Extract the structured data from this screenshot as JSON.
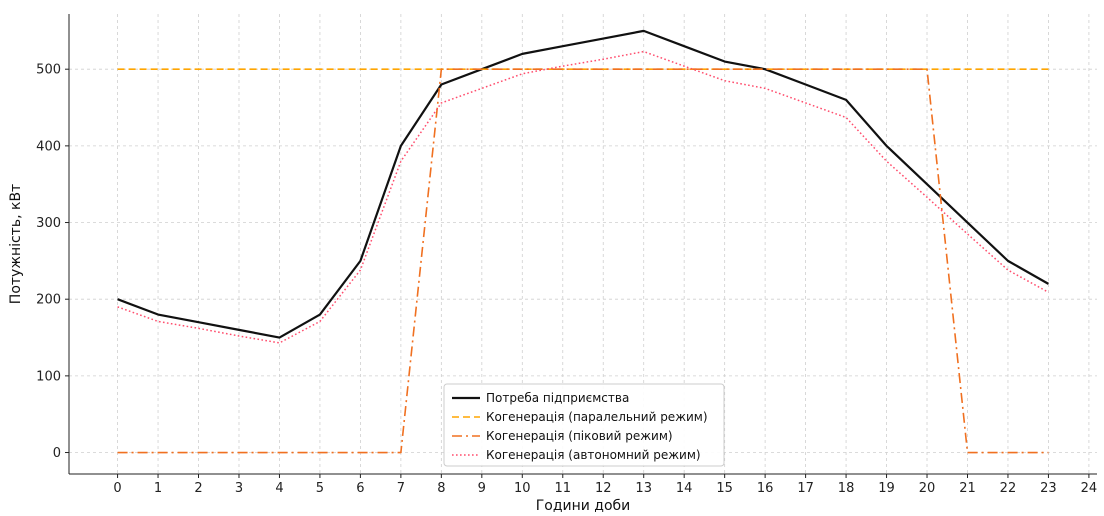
{
  "chart_data": {
    "type": "line",
    "title": "",
    "xlabel": "Години доби",
    "ylabel": "Потужність, кВт",
    "xlim": [
      -1.2,
      24.2
    ],
    "ylim": [
      -28,
      572
    ],
    "xticks": [
      0,
      1,
      2,
      3,
      4,
      5,
      6,
      7,
      8,
      9,
      10,
      11,
      12,
      13,
      14,
      15,
      16,
      17,
      18,
      19,
      20,
      21,
      22,
      23,
      24
    ],
    "yticks": [
      0,
      100,
      200,
      300,
      400,
      500
    ],
    "grid": true,
    "legend_position": "lower-center",
    "x": [
      0,
      1,
      2,
      3,
      4,
      5,
      6,
      7,
      8,
      9,
      10,
      11,
      12,
      13,
      14,
      15,
      16,
      17,
      18,
      19,
      20,
      21,
      22,
      23
    ],
    "series": [
      {
        "name": "Потреба підприємства",
        "color": "#111111",
        "style": "solid",
        "values": [
          200,
          180,
          170,
          160,
          150,
          180,
          250,
          400,
          480,
          500,
          520,
          530,
          540,
          550,
          530,
          510,
          500,
          480,
          460,
          400,
          350,
          300,
          250,
          220
        ]
      },
      {
        "name": "Когенерація (паралельний режим)",
        "color": "#ffa500",
        "style": "dashed",
        "values": [
          500,
          500,
          500,
          500,
          500,
          500,
          500,
          500,
          500,
          500,
          500,
          500,
          500,
          500,
          500,
          500,
          500,
          500,
          500,
          500,
          500,
          500,
          500,
          500
        ]
      },
      {
        "name": "Когенерація (піковий режим)",
        "color": "#f07020",
        "style": "dashdot",
        "values": [
          0,
          0,
          0,
          0,
          0,
          0,
          0,
          0,
          500,
          500,
          500,
          500,
          500,
          500,
          500,
          500,
          500,
          500,
          500,
          500,
          500,
          0,
          0,
          0
        ]
      },
      {
        "name": "Когенерація (автономний режим)",
        "color": "#ff4d6d",
        "style": "dotted",
        "values": [
          190,
          171,
          162,
          152,
          143,
          171,
          238,
          380,
          456,
          475,
          494,
          504,
          513,
          523,
          504,
          485,
          475,
          456,
          437,
          380,
          333,
          285,
          238,
          209
        ]
      }
    ]
  }
}
